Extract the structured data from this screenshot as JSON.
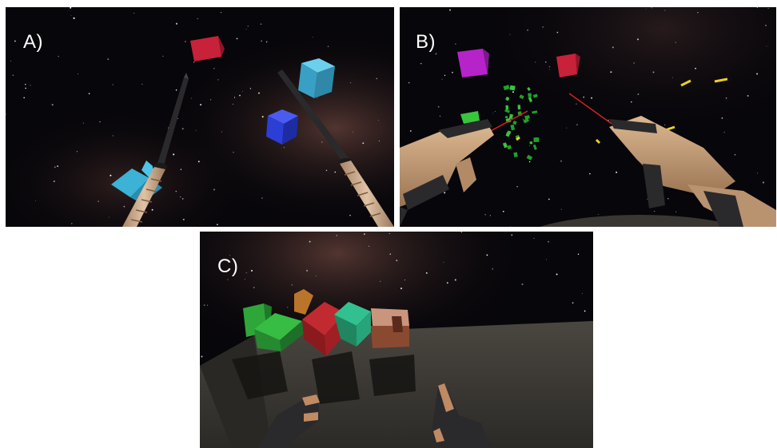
{
  "figure": {
    "panels": [
      {
        "label": "A)",
        "scene": "sword-slicing",
        "icons": [
          "katana-icon",
          "katana-icon",
          "cube-icon"
        ]
      },
      {
        "label": "B)",
        "scene": "shooting",
        "icons": [
          "rifle-icon",
          "rifle-icon",
          "cube-icon"
        ]
      },
      {
        "label": "C)",
        "scene": "block-stacking",
        "icons": [
          "hand-icon",
          "hand-icon",
          "cube-icon"
        ]
      }
    ]
  },
  "colors": {
    "space": "#07060a",
    "nebula": "#3a2422",
    "red_cube": "#c8213a",
    "cyan_cube": "#3bb2d6",
    "blue_cube": "#2b3ed6",
    "magenta_cube": "#b623c9",
    "green": "#2fa63a",
    "teal_cube": "#27a47a",
    "brown_cube": "#b0725a",
    "orange_cube": "#b9752a",
    "table": "#3a3733",
    "blade": "#2a2a2c",
    "handle": "#c7a587",
    "gun": "#c8a17c",
    "laser": "#d42020",
    "bullet": "#e6d21f",
    "glove": "#2a2a2c"
  }
}
